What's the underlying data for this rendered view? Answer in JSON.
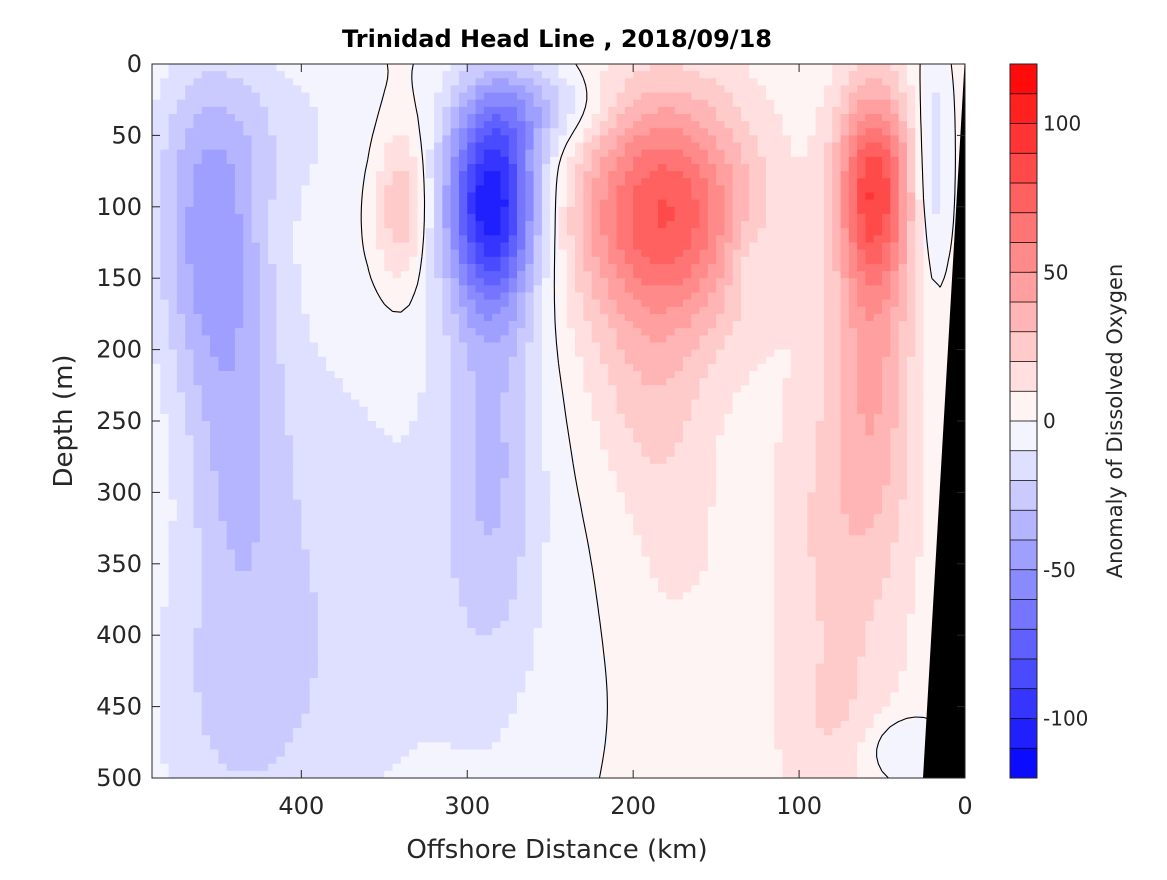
{
  "chart_data": {
    "type": "heatmap",
    "subtype": "filled-contour-section",
    "title": "Trinidad Head Line , 2018/09/18",
    "xlabel": "Offshore Distance (km)",
    "ylabel": "Depth (m)",
    "colorbar_label": "Anomaly of Dissolved Oxygen",
    "xlim": [
      490,
      0
    ],
    "x_reversed": true,
    "ylim": [
      0,
      500
    ],
    "y_reversed": true,
    "x_ticks": [
      400,
      300,
      200,
      100,
      0
    ],
    "y_ticks": [
      0,
      50,
      100,
      150,
      200,
      250,
      300,
      350,
      400,
      450,
      500
    ],
    "colorbar": {
      "range": [
        -120,
        120
      ],
      "ticks": [
        -100,
        -50,
        0,
        50,
        100
      ],
      "levels": 24,
      "colormap": "blue-white-red",
      "colors": {
        "low": "#0000ff",
        "mid": "#ffffff",
        "high": "#ff0000"
      }
    },
    "zero_contour_color": "#000000",
    "bathymetry_color": "#000000",
    "features": [
      {
        "x": 455,
        "depth": 120,
        "anomaly": -60
      },
      {
        "x": 445,
        "depth": 250,
        "anomaly": -45
      },
      {
        "x": 285,
        "depth": 90,
        "anomaly": -110
      },
      {
        "x": 182,
        "depth": 100,
        "anomaly": 75
      },
      {
        "x": 55,
        "depth": 80,
        "anomaly": 75
      },
      {
        "x": 340,
        "depth": 100,
        "anomaly": 10
      }
    ],
    "bathymetry": [
      {
        "x": 0,
        "depth": 0
      },
      {
        "x": 5,
        "depth": 100
      },
      {
        "x": 10,
        "depth": 200
      },
      {
        "x": 15,
        "depth": 300
      },
      {
        "x": 20,
        "depth": 400
      },
      {
        "x": 25,
        "depth": 500
      }
    ]
  }
}
